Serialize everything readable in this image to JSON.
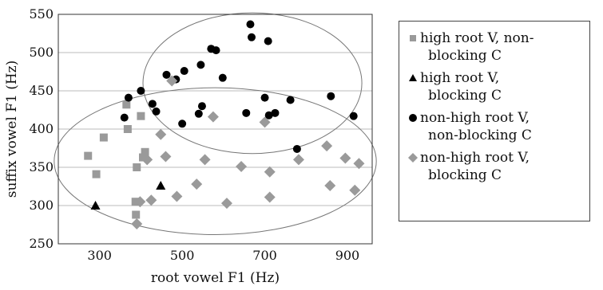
{
  "chart_data": {
    "type": "scatter",
    "xlabel": "root vowel F1 (Hz)",
    "ylabel": "suffix vowel F1 (Hz)",
    "xlim": [
      200,
      960
    ],
    "ylim": [
      250,
      550
    ],
    "xticks": [
      300,
      500,
      700,
      900
    ],
    "yticks": [
      250,
      300,
      350,
      400,
      450,
      500,
      550
    ],
    "grid": "horizontal",
    "legend_position": "right",
    "series": [
      {
        "name": "high root V, non-blocking C",
        "name_lines": [
          "high root V, non-",
          "blocking C"
        ],
        "marker": "square",
        "color": "#9a9a9a",
        "points": [
          [
            272,
            365
          ],
          [
            292,
            341
          ],
          [
            310,
            389
          ],
          [
            365,
            432
          ],
          [
            368,
            400
          ],
          [
            400,
            417
          ],
          [
            390,
            350
          ],
          [
            387,
            305
          ],
          [
            388,
            288
          ],
          [
            410,
            370
          ],
          [
            405,
            363
          ]
        ]
      },
      {
        "name": "high root V, blocking C",
        "name_lines": [
          "high root V,",
          "blocking C"
        ],
        "marker": "triangle",
        "color": "#000000",
        "points": [
          [
            290,
            300
          ],
          [
            448,
            326
          ]
        ]
      },
      {
        "name": "non-high root V, non-blocking C",
        "name_lines": [
          "non-high root V,",
          "non-blocking C"
        ],
        "marker": "circle",
        "color": "#000000",
        "points": [
          [
            360,
            415
          ],
          [
            370,
            441
          ],
          [
            400,
            450
          ],
          [
            428,
            433
          ],
          [
            437,
            423
          ],
          [
            462,
            471
          ],
          [
            485,
            465
          ],
          [
            500,
            407
          ],
          [
            505,
            476
          ],
          [
            540,
            420
          ],
          [
            545,
            484
          ],
          [
            548,
            430
          ],
          [
            570,
            505
          ],
          [
            582,
            503
          ],
          [
            598,
            467
          ],
          [
            655,
            421
          ],
          [
            665,
            537
          ],
          [
            668,
            520
          ],
          [
            700,
            441
          ],
          [
            708,
            515
          ],
          [
            710,
            418
          ],
          [
            725,
            421
          ],
          [
            762,
            438
          ],
          [
            778,
            374
          ],
          [
            860,
            443
          ],
          [
            915,
            417
          ]
        ]
      },
      {
        "name": "non-high root V, blocking C",
        "name_lines": [
          "non-high root V,",
          "blocking C"
        ],
        "marker": "diamond",
        "color": "#9a9a9a",
        "points": [
          [
            390,
            276
          ],
          [
            398,
            305
          ],
          [
            415,
            360
          ],
          [
            425,
            307
          ],
          [
            448,
            393
          ],
          [
            460,
            364
          ],
          [
            475,
            463
          ],
          [
            487,
            312
          ],
          [
            535,
            328
          ],
          [
            555,
            360
          ],
          [
            575,
            416
          ],
          [
            608,
            303
          ],
          [
            643,
            351
          ],
          [
            700,
            409
          ],
          [
            712,
            344
          ],
          [
            712,
            311
          ],
          [
            782,
            360
          ],
          [
            850,
            378
          ],
          [
            858,
            326
          ],
          [
            895,
            362
          ],
          [
            918,
            320
          ],
          [
            928,
            355
          ]
        ]
      }
    ],
    "ellipses": [
      {
        "cx": 670,
        "cy": 460,
        "rx": 265,
        "ry": 92
      },
      {
        "cx": 580,
        "cy": 358,
        "rx": 390,
        "ry": 96
      }
    ]
  }
}
